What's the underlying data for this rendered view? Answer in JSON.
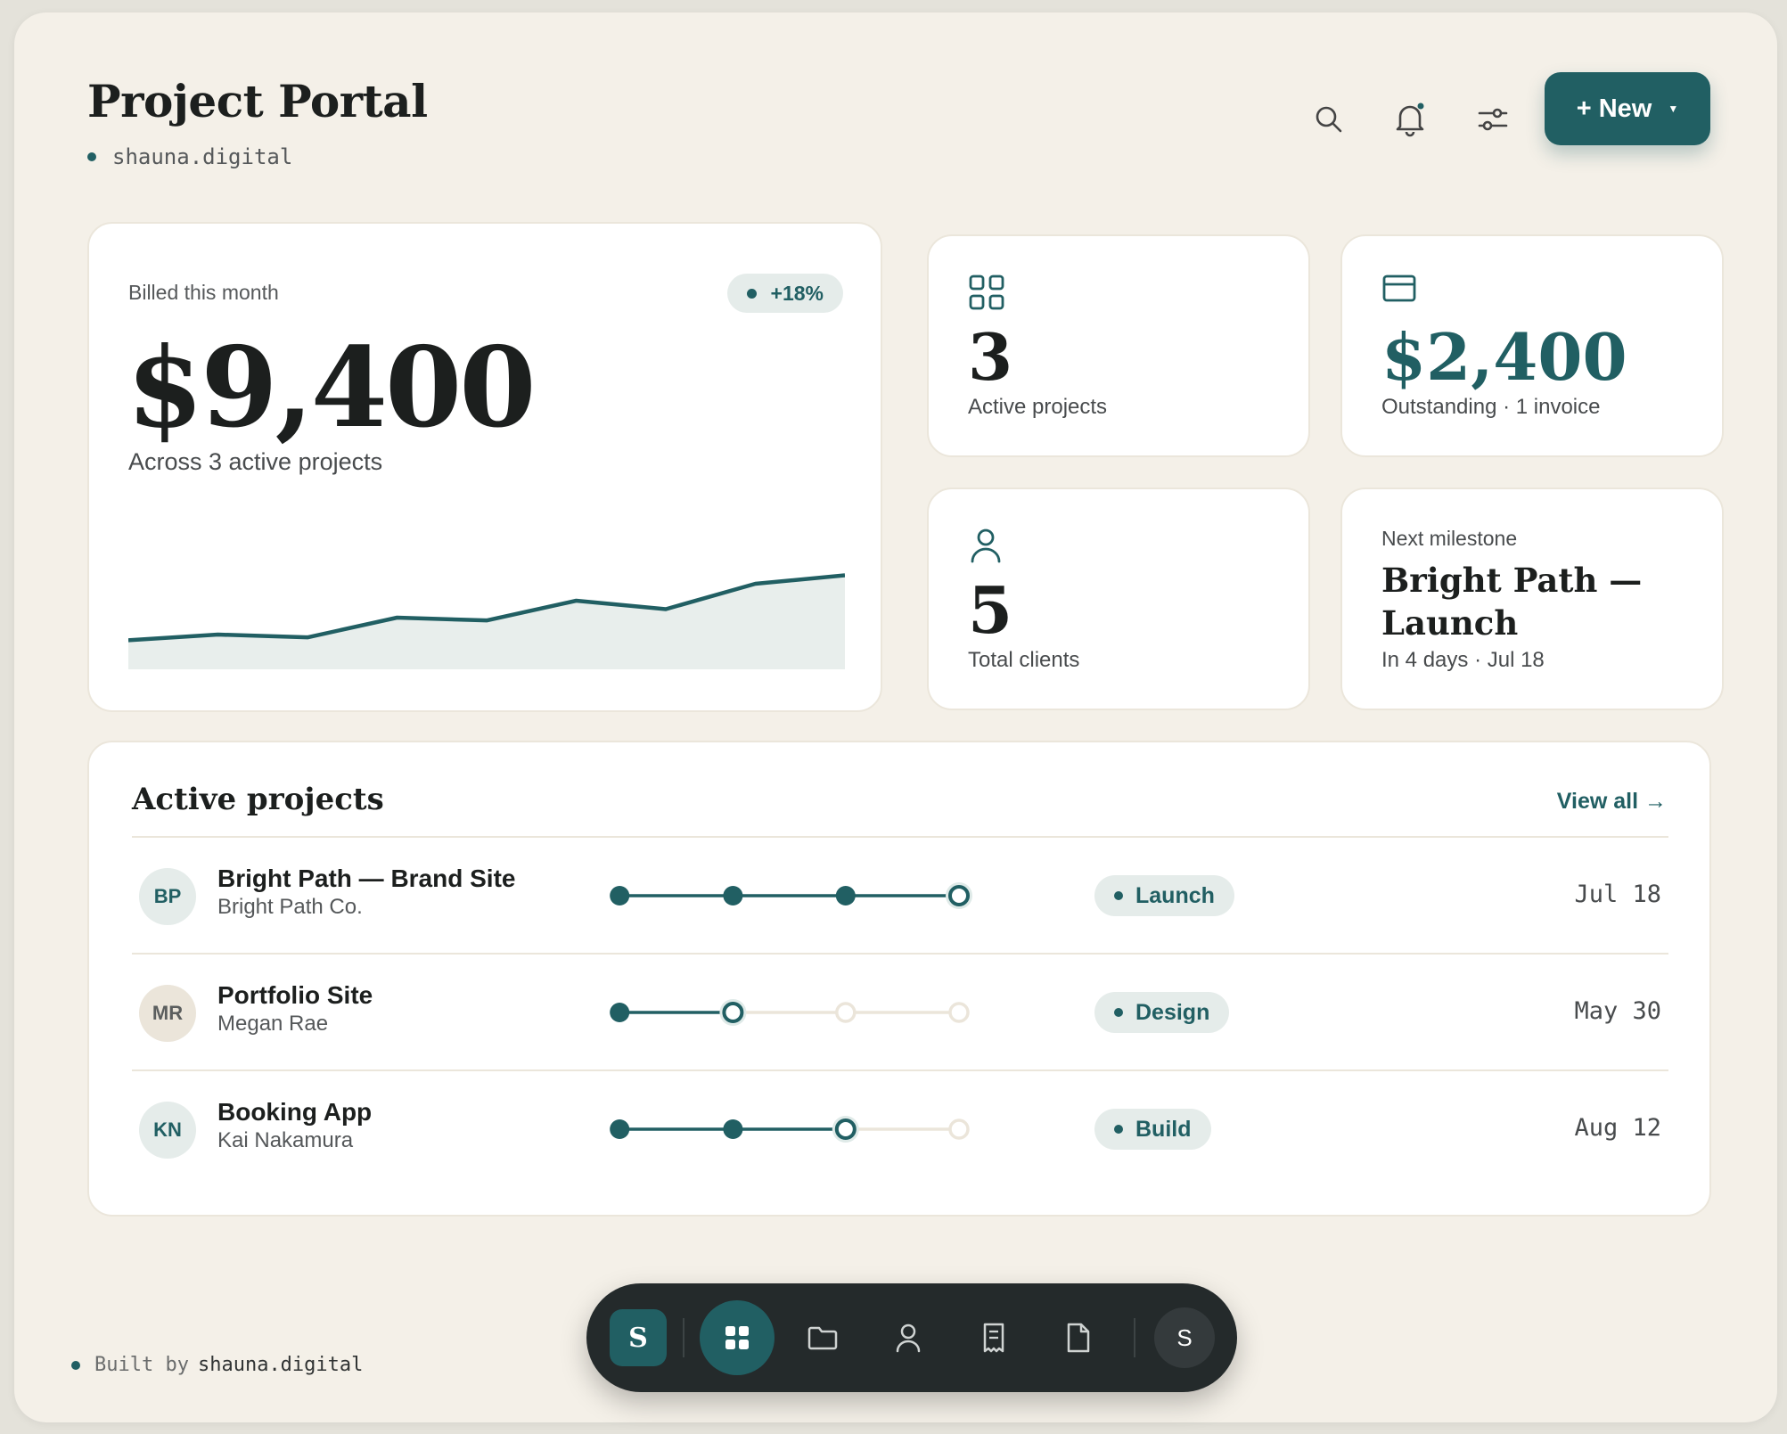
{
  "header": {
    "title": "Project Portal",
    "subtitle": "shauna.digital",
    "new_button": "+ New"
  },
  "billed": {
    "label": "Billed this month",
    "change": "+18%",
    "amount": "$9,400",
    "sub": "Across 3 active projects",
    "trend": [
      4,
      6,
      5,
      12,
      11,
      18,
      15,
      24,
      27
    ]
  },
  "stats": {
    "projects": {
      "value": "3",
      "caption": "Active projects",
      "icon": "grid-icon"
    },
    "outstanding": {
      "value": "$2,400",
      "caption": "Outstanding · 1 invoice",
      "icon": "card-icon"
    },
    "clients": {
      "value": "5",
      "caption": "Total clients",
      "icon": "person-icon"
    },
    "milestone": {
      "label": "Next milestone",
      "title": "Bright Path — Launch",
      "caption": "In 4 days · Jul 18"
    }
  },
  "projects": {
    "heading": "Active projects",
    "view_all": "View all →",
    "rows": [
      {
        "initials": "BP",
        "name": "Bright Path — Brand Site",
        "client": "Bright Path Co.",
        "stage": "Launch",
        "date": "Jul 18",
        "step": 4,
        "avatar": "teal"
      },
      {
        "initials": "MR",
        "name": "Portfolio Site",
        "client": "Megan Rae",
        "stage": "Design",
        "date": "May 30",
        "step": 2,
        "avatar": "beige"
      },
      {
        "initials": "KN",
        "name": "Booking App",
        "client": "Kai Nakamura",
        "stage": "Build",
        "date": "Aug 12",
        "step": 3,
        "avatar": "teal"
      }
    ]
  },
  "footer": {
    "built_by": "Built by",
    "site": "shauna.digital"
  },
  "dock": {
    "logo": "S",
    "user": "S",
    "icons": [
      "dashboard-icon",
      "folder-icon",
      "person-icon",
      "receipt-icon",
      "document-icon"
    ]
  },
  "colors": {
    "accent": "#215f63",
    "background": "#f4f0e8"
  }
}
